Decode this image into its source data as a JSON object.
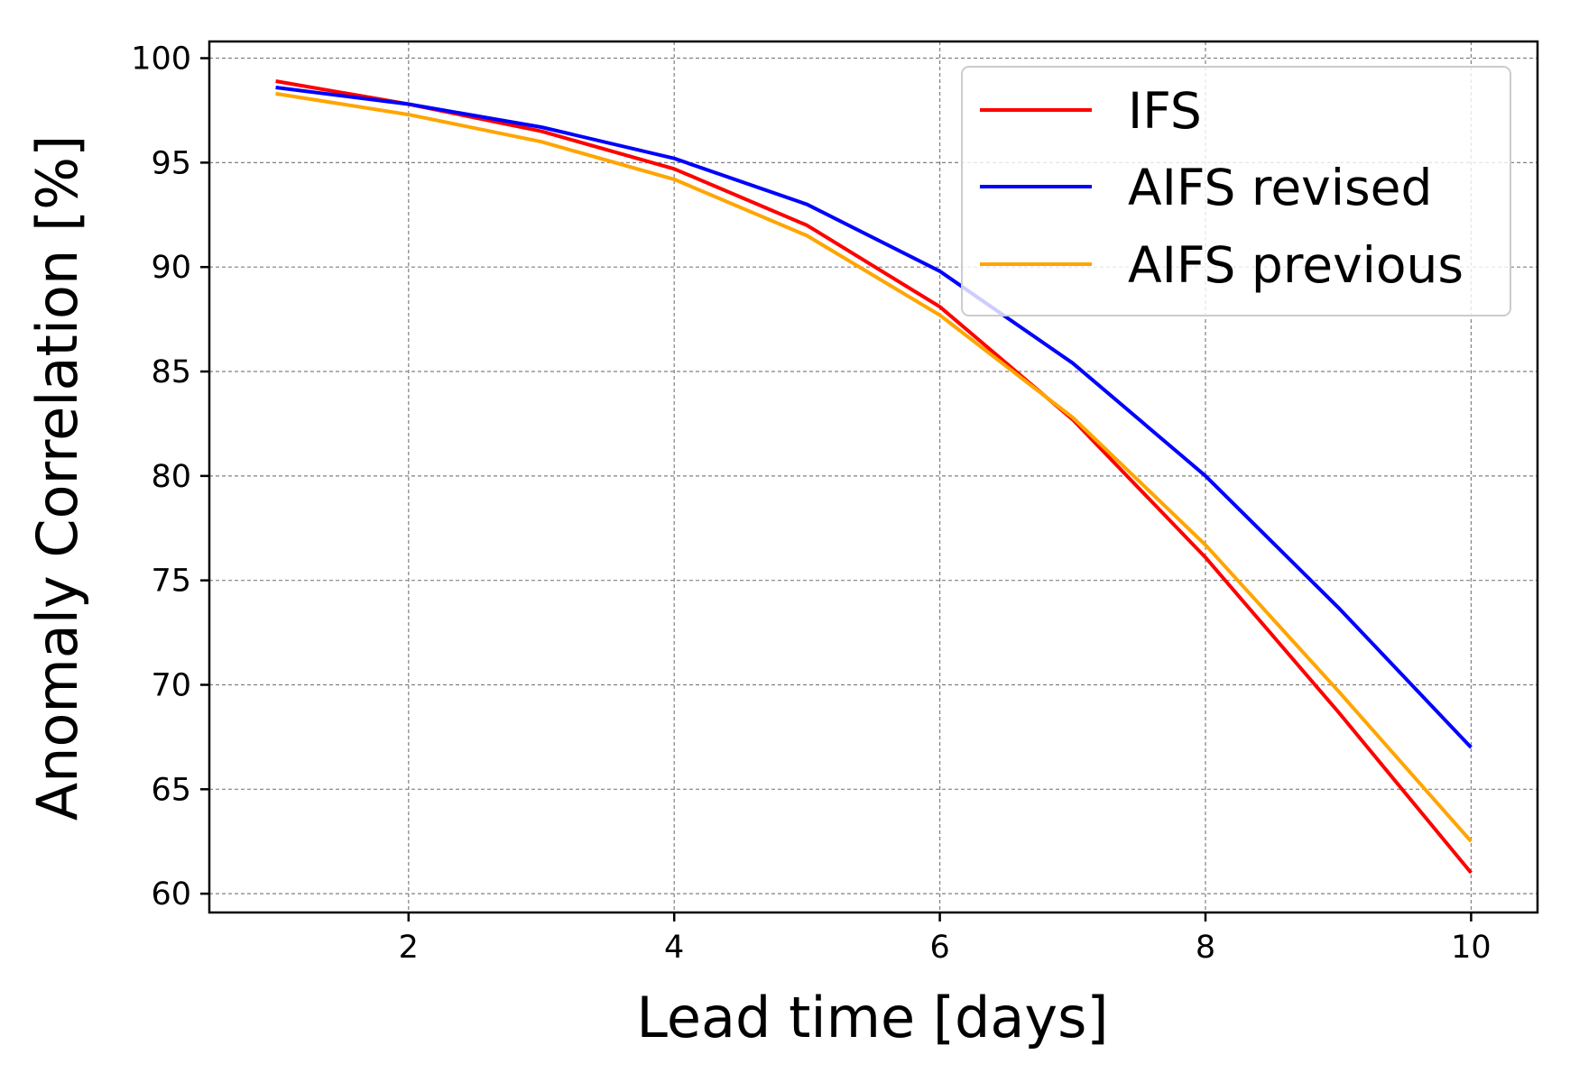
{
  "chart_data": {
    "type": "line",
    "title": "",
    "xlabel": "Lead time [days]",
    "ylabel": "Anomaly Correlation [%]",
    "xlim": [
      0.5,
      10.5
    ],
    "ylim": [
      59.1,
      100.8
    ],
    "xticks": [
      2,
      4,
      6,
      8,
      10
    ],
    "yticks": [
      60,
      65,
      70,
      75,
      80,
      85,
      90,
      95,
      100
    ],
    "grid": true,
    "legend_position": "top-right",
    "x": [
      1,
      2,
      3,
      4,
      5,
      6,
      7,
      8,
      9,
      10
    ],
    "series": [
      {
        "name": "IFS",
        "color": "#ff0000",
        "values": [
          98.9,
          97.8,
          96.5,
          94.7,
          92.0,
          88.1,
          82.7,
          76.1,
          68.7,
          61.0
        ]
      },
      {
        "name": "AIFS revised",
        "color": "#0000ff",
        "values": [
          98.6,
          97.8,
          96.7,
          95.2,
          93.0,
          89.8,
          85.4,
          80.0,
          73.7,
          67.0
        ]
      },
      {
        "name": "AIFS previous",
        "color": "#ffa500",
        "values": [
          98.3,
          97.3,
          96.0,
          94.2,
          91.5,
          87.7,
          82.8,
          76.7,
          69.7,
          62.5
        ]
      }
    ]
  }
}
